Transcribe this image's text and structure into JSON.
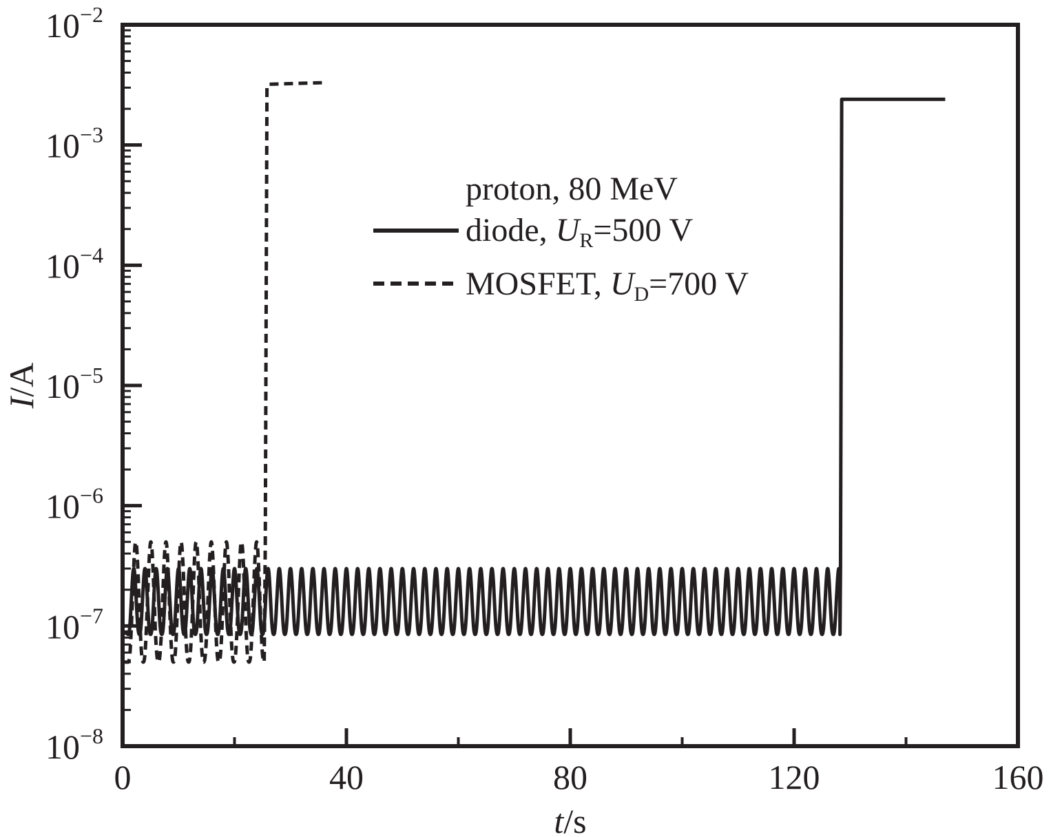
{
  "chart_data": {
    "type": "line",
    "title": "",
    "xlabel": {
      "italic": "t",
      "rest": "/s"
    },
    "ylabel": {
      "italic": "I",
      "rest": "/A"
    },
    "xlim": [
      0,
      160
    ],
    "ylim": [
      1e-08,
      0.01
    ],
    "yscale": "log",
    "grid": false,
    "legend_position": "upper-center",
    "x_ticks": [
      "0",
      "40",
      "80",
      "120",
      "160"
    ],
    "y_ticks": [
      {
        "base": "10",
        "exp": "−8"
      },
      {
        "base": "10",
        "exp": "−7"
      },
      {
        "base": "10",
        "exp": "−6"
      },
      {
        "base": "10",
        "exp": "−5"
      },
      {
        "base": "10",
        "exp": "−4"
      },
      {
        "base": "10",
        "exp": "−3"
      },
      {
        "base": "10",
        "exp": "−2"
      }
    ],
    "legend_title": "proton, 80 MeV",
    "series": [
      {
        "name": "diode, U_R=500 V",
        "legend_parts": {
          "pre": "diode, ",
          "var": "U",
          "sub": "R",
          "post": "=500 V"
        },
        "style": "solid",
        "color": "#231f20",
        "pulse": {
          "start": 1,
          "end": 128.2,
          "period": 2.0,
          "low": 8.5e-08,
          "high": 3e-07
        },
        "x": [
          0,
          1,
          128.2,
          128.3,
          128.4,
          128.5,
          147
        ],
        "y": [
          9e-08,
          8.5e-08,
          8.5e-08,
          3e-07,
          2.5e-05,
          0.0024,
          0.0024
        ]
      },
      {
        "name": "MOSFET, U_D=700 V",
        "legend_parts": {
          "pre": "MOSFET, ",
          "var": "U",
          "sub": "D",
          "post": "=700 V"
        },
        "style": "dashed",
        "color": "#231f20",
        "pulse": {
          "start": 1,
          "end": 25.3,
          "period": 2.7,
          "low": 5e-08,
          "high": 5e-07
        },
        "x": [
          0,
          1,
          25.3,
          25.5,
          25.8,
          26,
          36
        ],
        "y": [
          5e-08,
          5e-08,
          5e-08,
          5e-07,
          0.003,
          0.0032,
          0.0033
        ]
      }
    ]
  }
}
